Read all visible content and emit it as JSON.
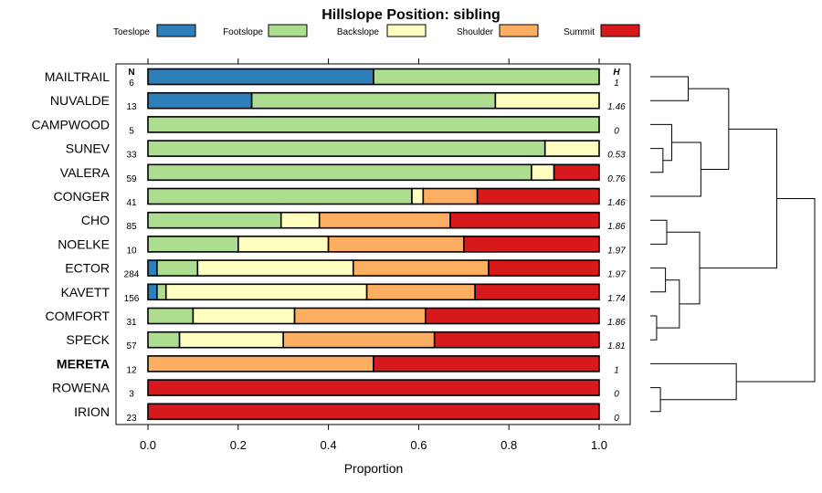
{
  "chart_data": {
    "type": "bar",
    "orientation": "horizontal",
    "stacked": true,
    "title": "Hillslope Position: sibling",
    "xlabel": "Proportion",
    "ylabel": "",
    "xlim": [
      0,
      1
    ],
    "x_ticks": [
      "0.0",
      "0.2",
      "0.4",
      "0.6",
      "0.8",
      "1.0"
    ],
    "n_header": "N",
    "h_header": "H",
    "highlight_category": "MERETA",
    "legend_position": "top",
    "series": [
      {
        "name": "Toeslope",
        "color": "#2c7fb8"
      },
      {
        "name": "Footslope",
        "color": "#addd8e"
      },
      {
        "name": "Backslope",
        "color": "#ffffc0"
      },
      {
        "name": "Shoulder",
        "color": "#fdae61"
      },
      {
        "name": "Summit",
        "color": "#d7191c"
      }
    ],
    "categories": [
      {
        "label": "MAILTRAIL",
        "n": "6",
        "h": "1",
        "values": [
          0.5,
          0.5,
          0,
          0,
          0
        ]
      },
      {
        "label": "NUVALDE",
        "n": "13",
        "h": "1.46",
        "values": [
          0.23,
          0.54,
          0.23,
          0,
          0
        ]
      },
      {
        "label": "CAMPWOOD",
        "n": "5",
        "h": "0",
        "values": [
          0,
          1.0,
          0,
          0,
          0
        ]
      },
      {
        "label": "SUNEV",
        "n": "33",
        "h": "0.53",
        "values": [
          0,
          0.88,
          0.12,
          0,
          0
        ]
      },
      {
        "label": "VALERA",
        "n": "59",
        "h": "0.76",
        "values": [
          0,
          0.85,
          0.05,
          0,
          0.1
        ]
      },
      {
        "label": "CONGER",
        "n": "41",
        "h": "1.46",
        "values": [
          0,
          0.585,
          0.025,
          0.12,
          0.27
        ]
      },
      {
        "label": "CHO",
        "n": "85",
        "h": "1.86",
        "values": [
          0,
          0.295,
          0.085,
          0.29,
          0.33
        ]
      },
      {
        "label": "NOELKE",
        "n": "10",
        "h": "1.97",
        "values": [
          0,
          0.2,
          0.2,
          0.3,
          0.3
        ]
      },
      {
        "label": "ECTOR",
        "n": "284",
        "h": "1.97",
        "values": [
          0.02,
          0.09,
          0.345,
          0.3,
          0.245
        ]
      },
      {
        "label": "KAVETT",
        "n": "156",
        "h": "1.74",
        "values": [
          0.02,
          0.02,
          0.445,
          0.24,
          0.275
        ]
      },
      {
        "label": "COMFORT",
        "n": "31",
        "h": "1.86",
        "values": [
          0,
          0.1,
          0.225,
          0.29,
          0.385
        ]
      },
      {
        "label": "SPECK",
        "n": "57",
        "h": "1.81",
        "values": [
          0,
          0.07,
          0.23,
          0.335,
          0.365
        ]
      },
      {
        "label": "MERETA",
        "n": "12",
        "h": "1",
        "values": [
          0,
          0,
          0,
          0.5,
          0.5
        ]
      },
      {
        "label": "ROWENA",
        "n": "3",
        "h": "0",
        "values": [
          0,
          0,
          0,
          0,
          1.0
        ]
      },
      {
        "label": "IRION",
        "n": "23",
        "h": "0",
        "values": [
          0,
          0,
          0,
          0,
          1.0
        ]
      }
    ],
    "dendrogram": {
      "description": "hierarchical clustering of soil series by hillslope proportions",
      "merges": [
        [
          "MAILTRAIL",
          "NUVALDE",
          0.3
        ],
        [
          "SUNEV",
          "VALERA",
          0.1
        ],
        [
          "CAMPWOOD",
          "SUNEV+VALERA",
          0.17
        ],
        [
          "CAMPWOOD+SUNEV+VALERA",
          "CONGER",
          0.4
        ],
        [
          "MAILTRAIL+NUVALDE",
          "CAMPWOOD+SUNEV+VALERA+CONGER",
          0.62
        ],
        [
          "CHO",
          "NOELKE",
          0.13
        ],
        [
          "ECTOR",
          "KAVETT",
          0.12
        ],
        [
          "COMFORT",
          "SPECK",
          0.05
        ],
        [
          "ECTOR+KAVETT",
          "COMFORT+SPECK",
          0.23
        ],
        [
          "CHO+NOELKE",
          "ECTOR+KAVETT+COMFORT+SPECK",
          0.39
        ],
        [
          "MAILTRAIL..CONGER",
          "CHO..SPECK",
          1.0
        ],
        [
          "ROWENA",
          "IRION",
          0.08
        ],
        [
          "MERETA",
          "ROWENA+IRION",
          0.68
        ],
        [
          "MAILTRAIL..SPECK",
          "MERETA+ROWENA+IRION",
          1.3
        ]
      ],
      "max_height": 1.3
    }
  }
}
